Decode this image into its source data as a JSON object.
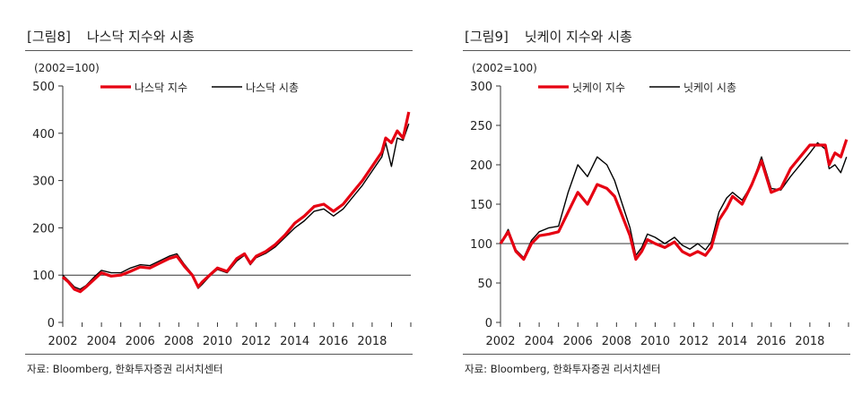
{
  "charts": [
    {
      "fig_label": "[그림8]",
      "fig_title": "나스닥 지수와 시총",
      "source": "자료: Bloomberg, 한화투자증권 리서치센터"
    },
    {
      "fig_label": "[그림9]",
      "fig_title": "닛케이 지수와 시총",
      "source": "자료: Bloomberg, 한화투자증권 리서치센터"
    }
  ],
  "colors": {
    "index": "#e60012",
    "market_cap": "#000000"
  },
  "chart_data": [
    {
      "type": "line",
      "title": "나스닥 지수와 시총",
      "unit_label": "(2002=100)",
      "xlabel": "",
      "ylabel": "",
      "ylim": [
        0,
        500
      ],
      "yticks": [
        0,
        100,
        200,
        300,
        400,
        500
      ],
      "xlim": [
        2002,
        2020
      ],
      "xticks": [
        2002,
        2004,
        2006,
        2008,
        2010,
        2012,
        2014,
        2016,
        2018
      ],
      "legend_position": "top",
      "series": [
        {
          "name": "나스닥 지수",
          "color": "#e60012",
          "x": [
            2002,
            2002.3,
            2002.6,
            2002.9,
            2003.2,
            2003.6,
            2004,
            2004.5,
            2005,
            2005.5,
            2006,
            2006.5,
            2007,
            2007.5,
            2007.9,
            2008.3,
            2008.7,
            2009.0,
            2009.2,
            2009.6,
            2010,
            2010.5,
            2011,
            2011.4,
            2011.7,
            2012,
            2012.5,
            2013,
            2013.5,
            2014,
            2014.5,
            2015,
            2015.5,
            2016.0,
            2016.5,
            2017,
            2017.5,
            2018,
            2018.5,
            2018.7,
            2019.0,
            2019.3,
            2019.6,
            2019.9
          ],
          "values": [
            96,
            85,
            70,
            65,
            75,
            90,
            105,
            98,
            100,
            108,
            117,
            115,
            125,
            135,
            140,
            118,
            100,
            75,
            85,
            100,
            115,
            108,
            135,
            145,
            125,
            140,
            150,
            165,
            185,
            210,
            225,
            245,
            250,
            235,
            250,
            275,
            300,
            330,
            360,
            390,
            380,
            405,
            390,
            445
          ]
        },
        {
          "name": "나스닥 시총",
          "color": "#000000",
          "x": [
            2002,
            2002.3,
            2002.6,
            2002.9,
            2003.2,
            2003.6,
            2004,
            2004.5,
            2005,
            2005.5,
            2006,
            2006.5,
            2007,
            2007.5,
            2007.9,
            2008.3,
            2008.7,
            2009.0,
            2009.2,
            2009.6,
            2010,
            2010.5,
            2011,
            2011.4,
            2011.7,
            2012,
            2012.5,
            2013,
            2013.5,
            2014,
            2014.5,
            2015,
            2015.5,
            2016.0,
            2016.5,
            2017,
            2017.5,
            2018,
            2018.5,
            2018.7,
            2019.0,
            2019.3,
            2019.6,
            2019.9
          ],
          "values": [
            100,
            88,
            75,
            70,
            78,
            95,
            110,
            105,
            105,
            115,
            122,
            120,
            130,
            140,
            145,
            122,
            102,
            72,
            80,
            98,
            112,
            105,
            130,
            142,
            122,
            137,
            146,
            160,
            180,
            200,
            215,
            235,
            240,
            225,
            240,
            265,
            290,
            320,
            350,
            380,
            330,
            390,
            385,
            420
          ]
        }
      ]
    },
    {
      "type": "line",
      "title": "닛케이 지수와 시총",
      "unit_label": "(2002=100)",
      "xlabel": "",
      "ylabel": "",
      "ylim": [
        0,
        300
      ],
      "yticks": [
        0,
        50,
        100,
        150,
        200,
        250,
        300
      ],
      "xlim": [
        2002,
        2020
      ],
      "xticks": [
        2002,
        2004,
        2006,
        2008,
        2010,
        2012,
        2014,
        2016,
        2018
      ],
      "legend_position": "top",
      "series": [
        {
          "name": "닛케이 지수",
          "color": "#e60012",
          "x": [
            2002,
            2002.4,
            2002.8,
            2003.2,
            2003.6,
            2004,
            2004.5,
            2005,
            2005.5,
            2006,
            2006.5,
            2007,
            2007.5,
            2007.9,
            2008.3,
            2008.7,
            2009.0,
            2009.3,
            2009.6,
            2010,
            2010.5,
            2011,
            2011.4,
            2011.8,
            2012.2,
            2012.6,
            2012.9,
            2013.3,
            2013.7,
            2014,
            2014.5,
            2015,
            2015.5,
            2016,
            2016.5,
            2017,
            2017.5,
            2018,
            2018.4,
            2018.8,
            2019.0,
            2019.3,
            2019.6,
            2019.9
          ],
          "values": [
            100,
            115,
            90,
            80,
            100,
            110,
            112,
            115,
            140,
            165,
            150,
            175,
            170,
            160,
            135,
            110,
            80,
            90,
            105,
            100,
            95,
            102,
            90,
            85,
            90,
            85,
            95,
            130,
            145,
            160,
            150,
            175,
            205,
            165,
            170,
            195,
            210,
            225,
            225,
            225,
            200,
            215,
            210,
            232
          ]
        },
        {
          "name": "닛케이 시총",
          "color": "#000000",
          "x": [
            2002,
            2002.4,
            2002.8,
            2003.2,
            2003.6,
            2004,
            2004.5,
            2005,
            2005.5,
            2006,
            2006.5,
            2007,
            2007.5,
            2007.9,
            2008.3,
            2008.7,
            2009.0,
            2009.3,
            2009.6,
            2010,
            2010.5,
            2011,
            2011.4,
            2011.8,
            2012.2,
            2012.6,
            2012.9,
            2013.3,
            2013.7,
            2014,
            2014.5,
            2015,
            2015.5,
            2016,
            2016.5,
            2017,
            2017.5,
            2018,
            2018.4,
            2018.8,
            2019.0,
            2019.3,
            2019.6,
            2019.9
          ],
          "values": [
            100,
            118,
            92,
            82,
            104,
            115,
            120,
            122,
            165,
            200,
            185,
            210,
            200,
            180,
            150,
            120,
            85,
            95,
            112,
            108,
            100,
            108,
            98,
            93,
            100,
            92,
            102,
            140,
            158,
            165,
            155,
            175,
            210,
            170,
            168,
            185,
            200,
            215,
            228,
            220,
            195,
            200,
            190,
            210
          ]
        }
      ]
    }
  ]
}
